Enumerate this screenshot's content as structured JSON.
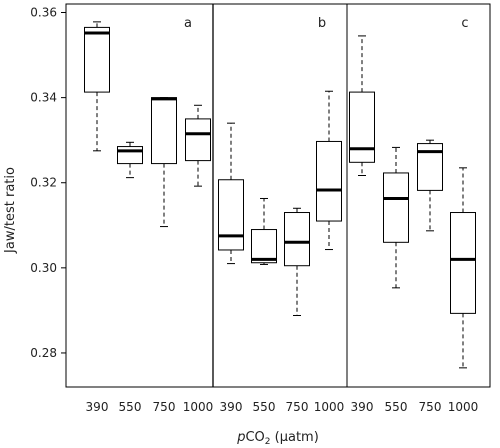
{
  "chart_data": {
    "type": "boxplot",
    "ylabel": "Jaw/test ratio",
    "xlabel_prefix": "p",
    "xlabel_main": "CO",
    "xlabel_sub": "2",
    "xlabel_unit": " (µatm)",
    "ylim": [
      0.272,
      0.362
    ],
    "yticks": [
      0.28,
      0.3,
      0.32,
      0.34,
      0.36
    ],
    "ytick_labels": [
      "0.28",
      "0.30",
      "0.32",
      "0.34",
      "0.36"
    ],
    "categories": [
      "390",
      "550",
      "750",
      "1000"
    ],
    "grid": false,
    "panels": [
      {
        "label": "a",
        "boxes": [
          {
            "category": "390",
            "whisker_low": 0.3275,
            "q1": 0.3413,
            "median": 0.3552,
            "q3": 0.3565,
            "whisker_high": 0.3578
          },
          {
            "category": "550",
            "whisker_low": 0.3212,
            "q1": 0.3245,
            "median": 0.3275,
            "q3": 0.3285,
            "whisker_high": 0.3295
          },
          {
            "category": "750",
            "whisker_low": 0.3097,
            "q1": 0.3245,
            "median": 0.3397,
            "q3": 0.34,
            "whisker_high": 0.34
          },
          {
            "category": "1000",
            "whisker_low": 0.3192,
            "q1": 0.3252,
            "median": 0.3315,
            "q3": 0.335,
            "whisker_high": 0.3382
          }
        ]
      },
      {
        "label": "b",
        "boxes": [
          {
            "category": "390",
            "whisker_low": 0.301,
            "q1": 0.3042,
            "median": 0.3075,
            "q3": 0.3207,
            "whisker_high": 0.334
          },
          {
            "category": "550",
            "whisker_low": 0.3008,
            "q1": 0.3012,
            "median": 0.302,
            "q3": 0.309,
            "whisker_high": 0.3163
          },
          {
            "category": "750",
            "whisker_low": 0.2888,
            "q1": 0.3005,
            "median": 0.306,
            "q3": 0.313,
            "whisker_high": 0.314
          },
          {
            "category": "1000",
            "whisker_low": 0.3043,
            "q1": 0.311,
            "median": 0.3183,
            "q3": 0.3297,
            "whisker_high": 0.3415
          }
        ]
      },
      {
        "label": "c",
        "boxes": [
          {
            "category": "390",
            "whisker_low": 0.3217,
            "q1": 0.3248,
            "median": 0.328,
            "q3": 0.3413,
            "whisker_high": 0.3545
          },
          {
            "category": "550",
            "whisker_low": 0.2953,
            "q1": 0.306,
            "median": 0.3163,
            "q3": 0.3223,
            "whisker_high": 0.3283
          },
          {
            "category": "750",
            "whisker_low": 0.3087,
            "q1": 0.3182,
            "median": 0.3273,
            "q3": 0.3292,
            "whisker_high": 0.33
          },
          {
            "category": "1000",
            "whisker_low": 0.2765,
            "q1": 0.2893,
            "median": 0.302,
            "q3": 0.313,
            "whisker_high": 0.3235
          }
        ]
      }
    ]
  }
}
